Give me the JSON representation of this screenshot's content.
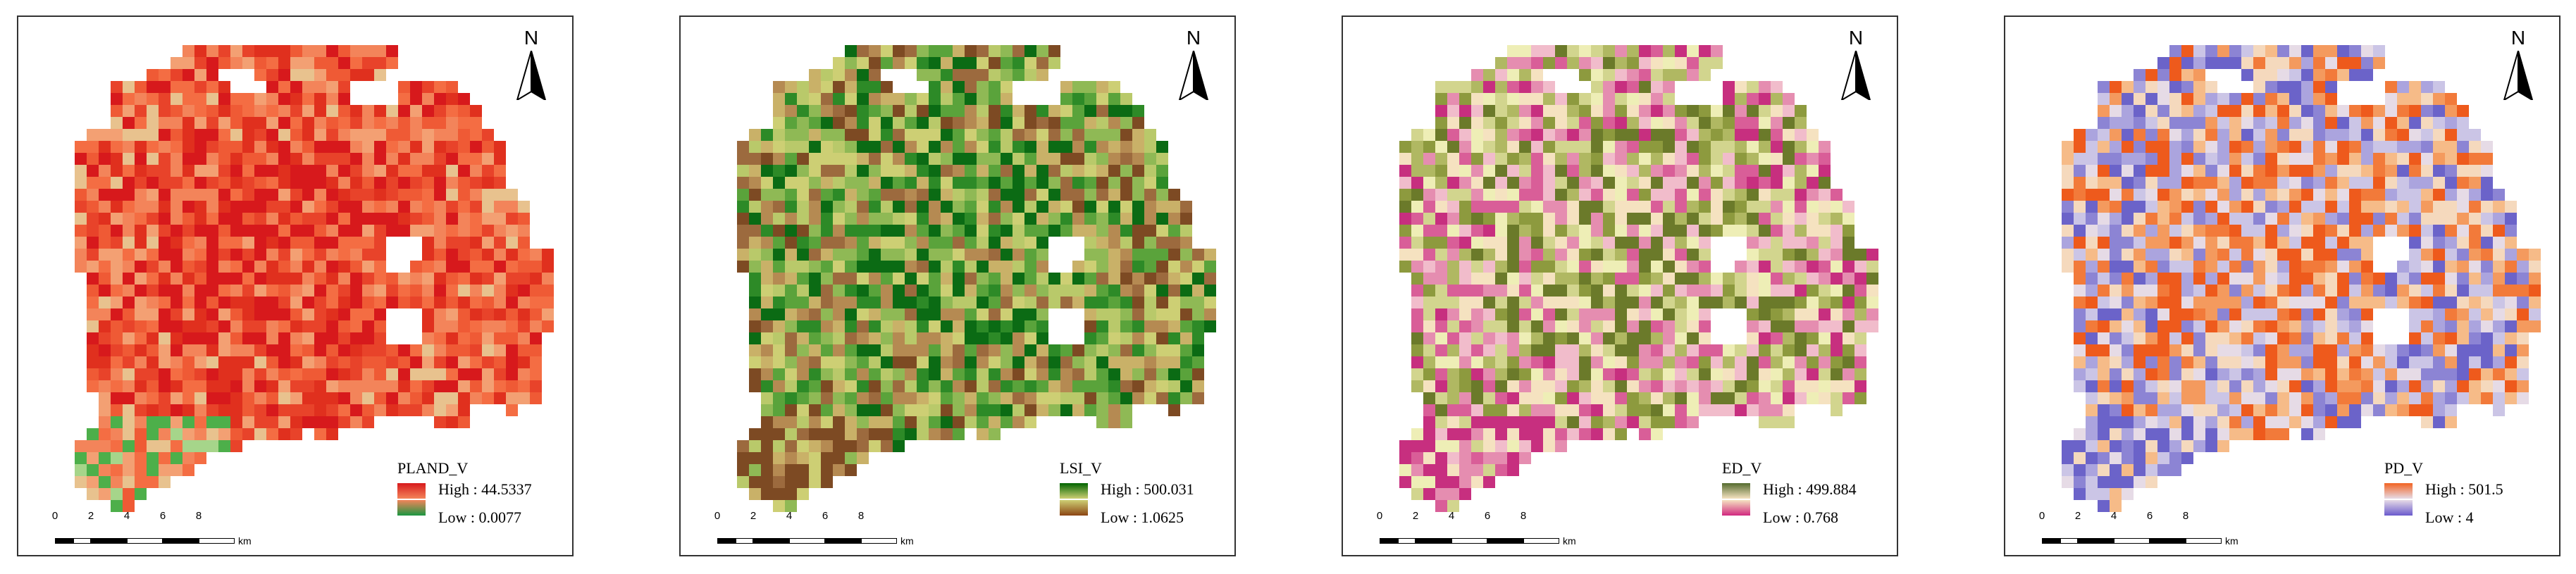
{
  "panels": [
    {
      "id": "pland",
      "legend": {
        "title": "PLAND_V",
        "high_label": "High : 44.5337",
        "low_label": "Low : 0.0077"
      },
      "colors": {
        "high": "#d7191c",
        "mid": "#f46d43",
        "low_end": "#1a9641",
        "palette": [
          "#d7191c",
          "#e0301e",
          "#e8432a",
          "#ef5a35",
          "#f46d43",
          "#f3845a",
          "#f3a073",
          "#e8c28e",
          "#a6d58a",
          "#4daf4a"
        ]
      },
      "north": "N",
      "scale": {
        "ticks": [
          "0",
          "2",
          "4",
          "6",
          "8"
        ],
        "unit": "km"
      }
    },
    {
      "id": "lsi",
      "legend": {
        "title": "LSI_V",
        "high_label": "High : 500.031",
        "low_label": "Low : 1.0625"
      },
      "colors": {
        "high": "#006400",
        "low_end": "#8b4513",
        "palette": [
          "#0b6b14",
          "#2d8a27",
          "#5aa33b",
          "#8fb955",
          "#b9c96a",
          "#cdcf74",
          "#c9b168",
          "#b58a52",
          "#9c6a3e",
          "#7d4a23"
        ]
      },
      "north": "N",
      "scale": {
        "ticks": [
          "0",
          "2",
          "4",
          "6",
          "8"
        ],
        "unit": "km"
      }
    },
    {
      "id": "ed",
      "legend": {
        "title": "ED_V",
        "high_label": "High : 499.884",
        "low_label": "Low : 0.768"
      },
      "colors": {
        "high": "#556b2f",
        "low_end": "#d1287f",
        "palette": [
          "#6b7a2a",
          "#8d9a3e",
          "#b0b862",
          "#d2d58e",
          "#eeeeb6",
          "#f5e2c0",
          "#f1bccb",
          "#e58db0",
          "#d95e98",
          "#c72f7f"
        ]
      },
      "north": "N",
      "scale": {
        "ticks": [
          "0",
          "2",
          "4",
          "6",
          "8"
        ],
        "unit": "km"
      }
    },
    {
      "id": "pd",
      "legend": {
        "title": "PD_V",
        "high_label": "High : 501.5",
        "low_label": "Low : 4"
      },
      "colors": {
        "high": "#f26322",
        "low_end": "#6a5acd",
        "palette": [
          "#ee5a1c",
          "#f27a3a",
          "#f49a5e",
          "#f6bb88",
          "#f5d9bd",
          "#e6dbe6",
          "#cbc5e6",
          "#aba4de",
          "#8c84d4",
          "#6b63c9"
        ]
      },
      "north": "N",
      "scale": {
        "ticks": [
          "0",
          "2",
          "4",
          "6",
          "8"
        ],
        "unit": "km"
      }
    }
  ]
}
